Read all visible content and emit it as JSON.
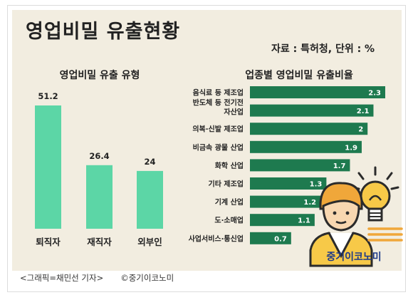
{
  "header": {
    "title": "영업비밀 유출현황",
    "source": "자료 : 특허청, 단위 : %"
  },
  "footer": {
    "caption": "<그래픽=채민선 기자>",
    "credit": "©중기이코노미"
  },
  "brand": {
    "logo_text": "중기이코노미"
  },
  "colors": {
    "panel_bg": "#f2ede0",
    "vbar": "#5cd6a6",
    "hbar": "#1e7a4f",
    "brand": "#1d3a8a"
  },
  "chart_data": [
    {
      "type": "bar",
      "orientation": "vertical",
      "title": "영업비밀 유출 유형",
      "categories": [
        "퇴직자",
        "재직자",
        "외부인"
      ],
      "values": [
        51.2,
        26.4,
        24
      ],
      "value_labels": [
        "51.2",
        "26.4",
        "24"
      ],
      "ylim": [
        0,
        51.2
      ],
      "grid": false,
      "legend": "none"
    },
    {
      "type": "bar",
      "orientation": "horizontal",
      "title": "업종별 영업비밀 유출비율",
      "categories": [
        "음식료 등 제조업",
        "반도체 등 전기전\n자산업",
        "의복·신발 제조업",
        "비금속 광물 산업",
        "화학 산업",
        "기타 제조업",
        "기계 산업",
        "도·소매업",
        "사업서비스·통신업"
      ],
      "values": [
        2.3,
        2.1,
        2,
        1.9,
        1.7,
        1.3,
        1.2,
        1.1,
        0.7
      ],
      "value_labels": [
        "2.3",
        "2.1",
        "2",
        "1.9",
        "1.7",
        "1.3",
        "1.2",
        "1.1",
        "0.7"
      ],
      "xlim": [
        0,
        2.3
      ],
      "grid": false,
      "legend": "none"
    }
  ]
}
